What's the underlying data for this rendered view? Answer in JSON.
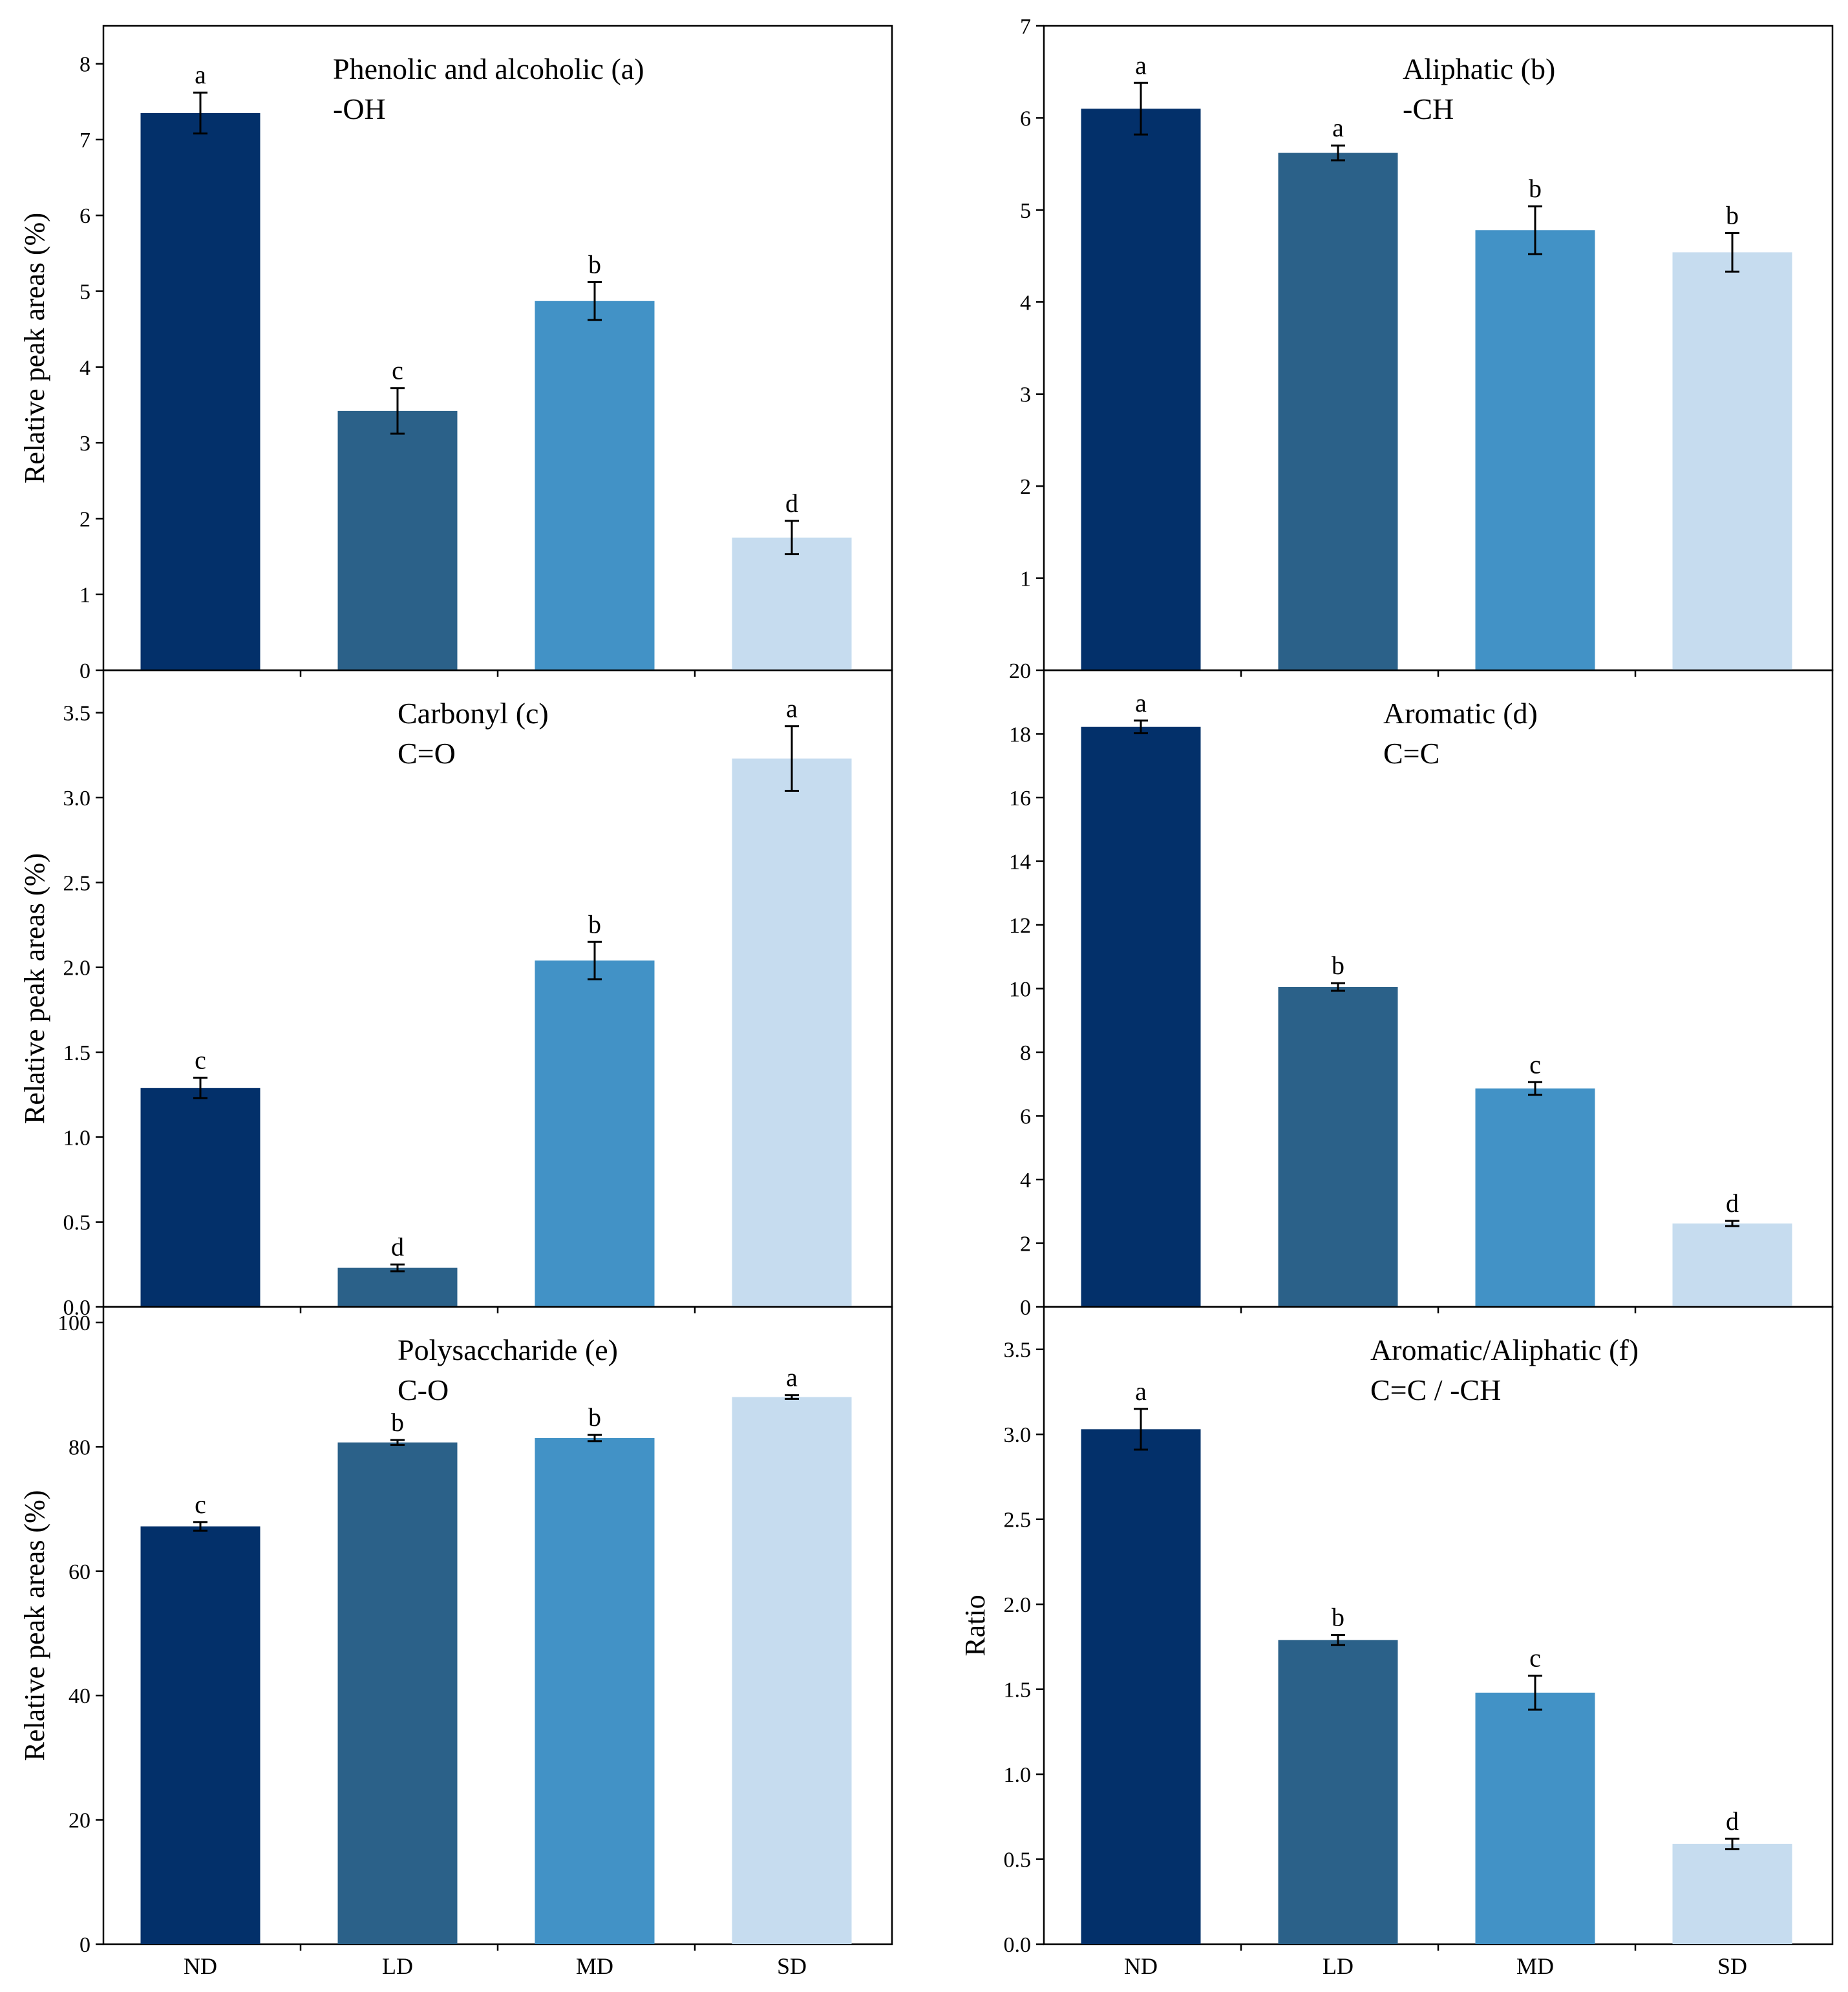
{
  "categories": [
    "ND",
    "LD",
    "MD",
    "SD"
  ],
  "colors": [
    "#03306a",
    "#2b6189",
    "#4292c6",
    "#c6dcef"
  ],
  "chart_data": [
    {
      "id": "a",
      "type": "bar",
      "title_line1": "Phenolic and alcoholic (a)",
      "title_line2": "-OH",
      "ylabel": "Relative peak areas (%)",
      "ylim": [
        0,
        8.5
      ],
      "yticks": [
        0,
        1,
        2,
        3,
        4,
        5,
        6,
        7,
        8
      ],
      "ytick_labels": [
        "0",
        "1",
        "2",
        "3",
        "4",
        "5",
        "6",
        "7",
        "8"
      ],
      "categories": [
        "ND",
        "LD",
        "MD",
        "SD"
      ],
      "values": [
        7.35,
        3.42,
        4.87,
        1.75
      ],
      "errors": [
        0.27,
        0.3,
        0.25,
        0.22
      ],
      "significance": [
        "a",
        "c",
        "b",
        "d"
      ]
    },
    {
      "id": "b",
      "type": "bar",
      "title_line1": "Aliphatic (b)",
      "title_line2": "-CH",
      "ylabel": "",
      "ylim": [
        0,
        7
      ],
      "yticks": [
        1,
        2,
        3,
        4,
        5,
        6,
        7
      ],
      "ytick_labels": [
        "1",
        "2",
        "3",
        "4",
        "5",
        "6",
        "7"
      ],
      "categories": [
        "ND",
        "LD",
        "MD",
        "SD"
      ],
      "values": [
        6.1,
        5.62,
        4.78,
        4.54
      ],
      "errors": [
        0.28,
        0.08,
        0.26,
        0.21
      ],
      "significance": [
        "a",
        "a",
        "b",
        "b"
      ]
    },
    {
      "id": "c",
      "type": "bar",
      "title_line1": "Carbonyl (c)",
      "title_line2": "C=O",
      "ylabel": "Relative peak areas (%)",
      "ylim": [
        0,
        3.75
      ],
      "yticks": [
        0,
        0.5,
        1,
        1.5,
        2,
        2.5,
        3,
        3.5
      ],
      "ytick_labels": [
        "0.0",
        "0.5",
        "1.0",
        "1.5",
        "2.0",
        "2.5",
        "3.0",
        "3.5"
      ],
      "categories": [
        "ND",
        "LD",
        "MD",
        "SD"
      ],
      "values": [
        1.29,
        0.23,
        2.04,
        3.23
      ],
      "errors": [
        0.06,
        0.02,
        0.11,
        0.19
      ],
      "significance": [
        "c",
        "d",
        "b",
        "a"
      ]
    },
    {
      "id": "d",
      "type": "bar",
      "title_line1": "Aromatic (d)",
      "title_line2": "C=C",
      "ylabel": "",
      "ylim": [
        0,
        20
      ],
      "yticks": [
        0,
        2,
        4,
        6,
        8,
        10,
        12,
        14,
        16,
        18,
        20
      ],
      "ytick_labels": [
        "0",
        "2",
        "4",
        "6",
        "8",
        "10",
        "12",
        "14",
        "16",
        "18",
        "20"
      ],
      "categories": [
        "ND",
        "LD",
        "MD",
        "SD"
      ],
      "values": [
        18.22,
        10.05,
        6.86,
        2.62
      ],
      "errors": [
        0.2,
        0.12,
        0.2,
        0.08
      ],
      "significance": [
        "a",
        "b",
        "c",
        "d"
      ]
    },
    {
      "id": "e",
      "type": "bar",
      "title_line1": "Polysaccharide (e)",
      "title_line2": "C-O",
      "ylabel": "Relative peak areas (%)",
      "ylim": [
        0,
        102.5
      ],
      "yticks": [
        0,
        20,
        40,
        60,
        80,
        100
      ],
      "ytick_labels": [
        "0",
        "20",
        "40",
        "60",
        "80",
        "100"
      ],
      "categories": [
        "ND",
        "LD",
        "MD",
        "SD"
      ],
      "values": [
        67.2,
        80.7,
        81.4,
        88.0
      ],
      "errors": [
        0.7,
        0.4,
        0.5,
        0.3
      ],
      "significance": [
        "c",
        "b",
        "b",
        "a"
      ]
    },
    {
      "id": "f",
      "type": "bar",
      "title_line1": "Aromatic/Aliphatic (f)",
      "title_line2": "C=C / -CH",
      "ylabel": "Ratio",
      "ylim": [
        0,
        3.75
      ],
      "yticks": [
        0,
        0.5,
        1,
        1.5,
        2,
        2.5,
        3,
        3.5
      ],
      "ytick_labels": [
        "0.0",
        "0.5",
        "1.0",
        "1.5",
        "2.0",
        "2.5",
        "3.0",
        "3.5"
      ],
      "categories": [
        "ND",
        "LD",
        "MD",
        "SD"
      ],
      "values": [
        3.03,
        1.79,
        1.48,
        0.59
      ],
      "errors": [
        0.12,
        0.03,
        0.1,
        0.03
      ],
      "significance": [
        "a",
        "b",
        "c",
        "d"
      ]
    }
  ]
}
